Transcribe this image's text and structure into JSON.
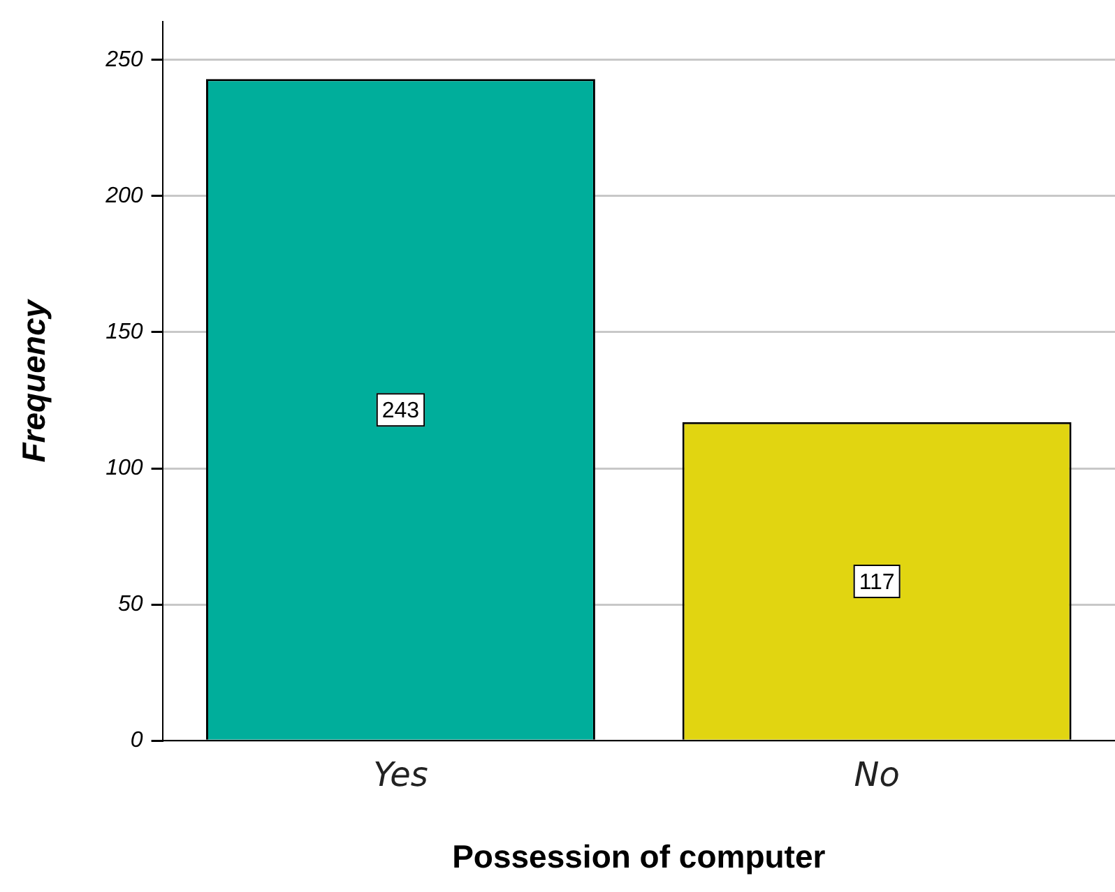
{
  "chart_data": {
    "type": "bar",
    "xlabel": "Possession of computer",
    "ylabel": "Frequency",
    "categories": [
      "Yes",
      "No"
    ],
    "values": [
      243,
      117
    ],
    "colors": [
      "#00ae9b",
      "#e1d511"
    ],
    "ylim": [
      0,
      264
    ],
    "yticks": [
      0,
      50,
      100,
      150,
      200,
      250
    ],
    "grid": "y",
    "legend": false,
    "data_labels": true
  }
}
